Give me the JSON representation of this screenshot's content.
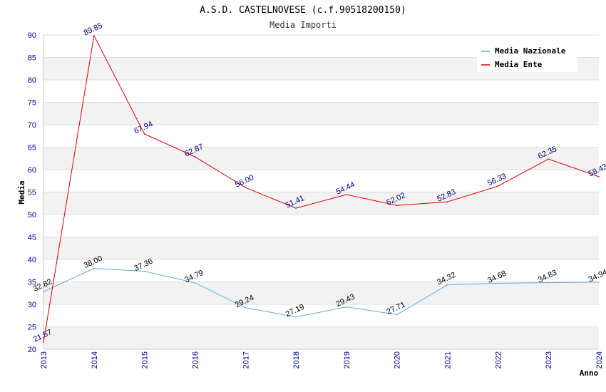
{
  "chart_data": {
    "type": "line",
    "title": "A.S.D. CASTELNOVESE (c.f.90518200150)",
    "subtitle": "Media Importi",
    "xlabel": "Anno",
    "ylabel": "Media",
    "ylim": [
      20,
      90
    ],
    "yticks": [
      "20",
      "25",
      "30",
      "35",
      "40",
      "45",
      "50",
      "55",
      "60",
      "65",
      "70",
      "75",
      "80",
      "85",
      "90"
    ],
    "categories": [
      "2013",
      "2014",
      "2015",
      "2016",
      "2017",
      "2018",
      "2019",
      "2020",
      "2021",
      "2022",
      "2023",
      "2024"
    ],
    "grid": "horizontal bands",
    "legend_position": "top-right",
    "series": [
      {
        "name": "Media Nazionale",
        "color": "#66aadd",
        "label_color": "#000000",
        "values": [
          32.82,
          38.0,
          37.36,
          34.79,
          29.24,
          27.19,
          29.43,
          27.71,
          34.32,
          34.68,
          34.83,
          34.94
        ],
        "labels": [
          "32.82",
          "38.00",
          "37.36",
          "34.79",
          "29.24",
          "27.19",
          "29.43",
          "27.71",
          "34.32",
          "34.68",
          "34.83",
          "34.94"
        ]
      },
      {
        "name": "Media Ente",
        "color": "#dd0000",
        "label_color": "#000080",
        "values": [
          21.57,
          89.85,
          67.94,
          62.87,
          56.0,
          51.41,
          54.44,
          52.02,
          52.83,
          56.33,
          62.35,
          58.43
        ],
        "labels": [
          "21.57",
          "89.85",
          "67.94",
          "62.87",
          "56.00",
          "51.41",
          "54.44",
          "52.02",
          "52.83",
          "56.33",
          "62.35",
          "58.43"
        ]
      }
    ]
  }
}
